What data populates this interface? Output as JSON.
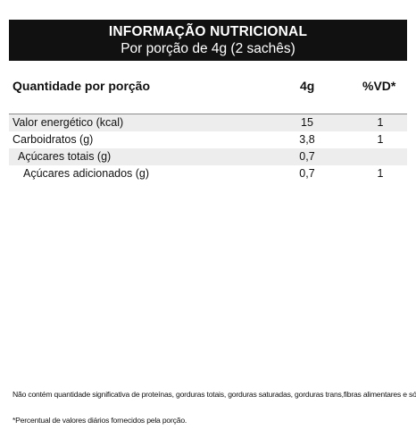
{
  "header": {
    "title": "INFORMAÇÃO NUTRICIONAL",
    "subtitle": "Por porção de 4g (2 sachês)"
  },
  "columns": {
    "label": "Quantidade por porção",
    "amount": "4g",
    "vd": "%VD*"
  },
  "rows": [
    {
      "label": "Valor energético (kcal)",
      "amount": "15",
      "vd": "1"
    },
    {
      "label": "Carboidratos (g)",
      "amount": "3,8",
      "vd": "1"
    },
    {
      "label": "Açúcares totais (g)",
      "amount": "0,7",
      "vd": ""
    },
    {
      "label": "Açúcares adicionados (g)",
      "amount": "0,7",
      "vd": "1"
    }
  ],
  "footer": {
    "note": "Não contém quantidade significativa de proteínas, gorduras totais, gorduras saturadas, gorduras trans,fibras alimentares e sódio.",
    "vd_note": "*Percentual de valores diários fornecidos pela porção."
  }
}
